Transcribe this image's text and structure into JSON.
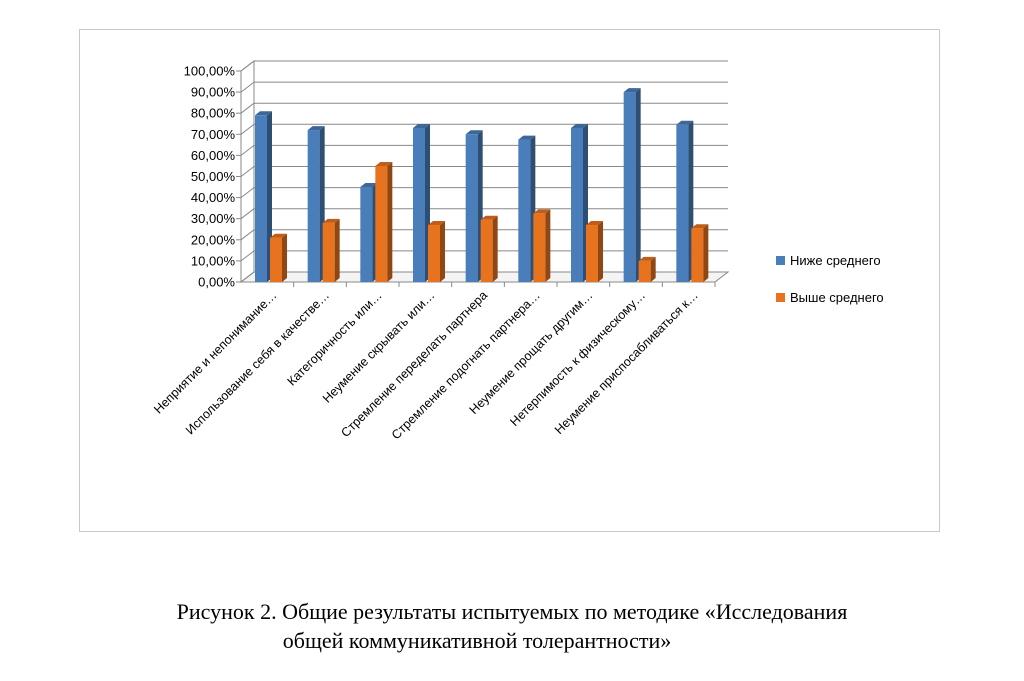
{
  "chart_data": {
    "type": "bar",
    "style": "3d-clustered-column",
    "categories": [
      "Неприятие и непонимание…",
      "Использование себя в качестве…",
      "Категоричность или…",
      "Неумение скрывать или…",
      "Стремление переделать партнера",
      "Стремление подогнать партнера…",
      "Неумение прощать другим…",
      "Нетерпимость к физическому…",
      "Неумение приспосабливаться к…"
    ],
    "series": [
      {
        "name": "Ниже среднего",
        "color": "#4a7ebb",
        "values": [
          79,
          72,
          45,
          73,
          70,
          67.5,
          73,
          90,
          74.5
        ]
      },
      {
        "name": "Выше среднего",
        "color": "#e8731f",
        "values": [
          21,
          28,
          55,
          27,
          29.5,
          32.5,
          27,
          10,
          25.5
        ]
      }
    ],
    "yticks": [
      "0,00%",
      "10,00%",
      "20,00%",
      "30,00%",
      "40,00%",
      "50,00%",
      "60,00%",
      "70,00%",
      "80,00%",
      "90,00%",
      "100,00%"
    ],
    "ylim": [
      0,
      100
    ],
    "ylabel": "",
    "xlabel": "",
    "grid": true,
    "legend": "right"
  },
  "caption": {
    "line1": "Рисунок 2. Общие результаты испытуемых по методике «Исследования",
    "line2": "общей коммуникативной толерантности»"
  }
}
